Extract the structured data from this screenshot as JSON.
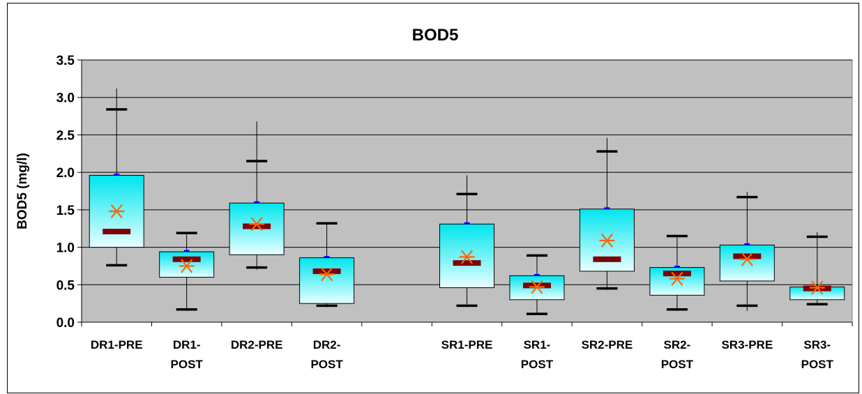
{
  "chart_data": {
    "type": "box",
    "title": "BOD5",
    "ylabel": "BOD5 (mg/l)",
    "xlabel": "",
    "ylim": [
      0,
      3.5
    ],
    "yticks": [
      "0.0",
      "0.5",
      "1.0",
      "1.5",
      "2.0",
      "2.5",
      "3.0",
      "3.5"
    ],
    "grid": true,
    "categories": [
      {
        "label_lines": [
          "DR1-PRE"
        ]
      },
      {
        "label_lines": [
          "DR1-",
          "POST"
        ]
      },
      {
        "label_lines": [
          "DR2-PRE"
        ]
      },
      {
        "label_lines": [
          "DR2-",
          "POST"
        ]
      },
      {
        "label_lines": [
          ""
        ]
      },
      {
        "label_lines": [
          "SR1-PRE"
        ]
      },
      {
        "label_lines": [
          "SR1-",
          "POST"
        ]
      },
      {
        "label_lines": [
          "SR2-PRE"
        ]
      },
      {
        "label_lines": [
          "SR2-",
          "POST"
        ]
      },
      {
        "label_lines": [
          "SR3-PRE"
        ]
      },
      {
        "label_lines": [
          "SR3-",
          "POST"
        ]
      }
    ],
    "boxes": [
      {
        "cat": 0,
        "min": 0.75,
        "max": 3.12,
        "p10": 0.76,
        "p90": 2.84,
        "q1": 1.0,
        "q3": 1.96,
        "median": 1.21,
        "mean": 1.48
      },
      {
        "cat": 1,
        "min": 0.15,
        "max": 1.2,
        "p10": 0.17,
        "p90": 1.19,
        "q1": 0.6,
        "q3": 0.94,
        "median": 0.84,
        "mean": 0.75
      },
      {
        "cat": 2,
        "min": 0.7,
        "max": 2.68,
        "p10": 0.73,
        "p90": 2.15,
        "q1": 0.9,
        "q3": 1.59,
        "median": 1.28,
        "mean": 1.31
      },
      {
        "cat": 3,
        "min": 0.2,
        "max": 1.32,
        "p10": 0.22,
        "p90": 1.32,
        "q1": 0.25,
        "q3": 0.86,
        "median": 0.68,
        "mean": 0.64
      },
      {
        "cat": 5,
        "min": 0.2,
        "max": 1.96,
        "p10": 0.22,
        "p90": 1.71,
        "q1": 0.46,
        "q3": 1.31,
        "median": 0.79,
        "mean": 0.87
      },
      {
        "cat": 6,
        "min": 0.1,
        "max": 0.9,
        "p10": 0.11,
        "p90": 0.89,
        "q1": 0.3,
        "q3": 0.62,
        "median": 0.49,
        "mean": 0.47
      },
      {
        "cat": 7,
        "min": 0.43,
        "max": 2.46,
        "p10": 0.45,
        "p90": 2.28,
        "q1": 0.68,
        "q3": 1.51,
        "median": 0.84,
        "mean": 1.09
      },
      {
        "cat": 8,
        "min": 0.15,
        "max": 1.17,
        "p10": 0.17,
        "p90": 1.15,
        "q1": 0.36,
        "q3": 0.73,
        "median": 0.65,
        "mean": 0.58
      },
      {
        "cat": 9,
        "min": 0.15,
        "max": 1.74,
        "p10": 0.22,
        "p90": 1.67,
        "q1": 0.55,
        "q3": 1.03,
        "median": 0.88,
        "mean": 0.84
      },
      {
        "cat": 10,
        "min": 0.24,
        "max": 1.2,
        "p10": 0.24,
        "p90": 1.14,
        "q1": 0.3,
        "q3": 0.47,
        "median": 0.45,
        "mean": 0.46
      }
    ],
    "colors": {
      "plot_bg": "#c0c0c0",
      "box_top": "#00e5ee",
      "box_bottom": "#e8ffff",
      "median": "#7f0000",
      "mean": "#ff6600",
      "q3_marker": "#0000ff",
      "whisker": "#000000"
    }
  }
}
